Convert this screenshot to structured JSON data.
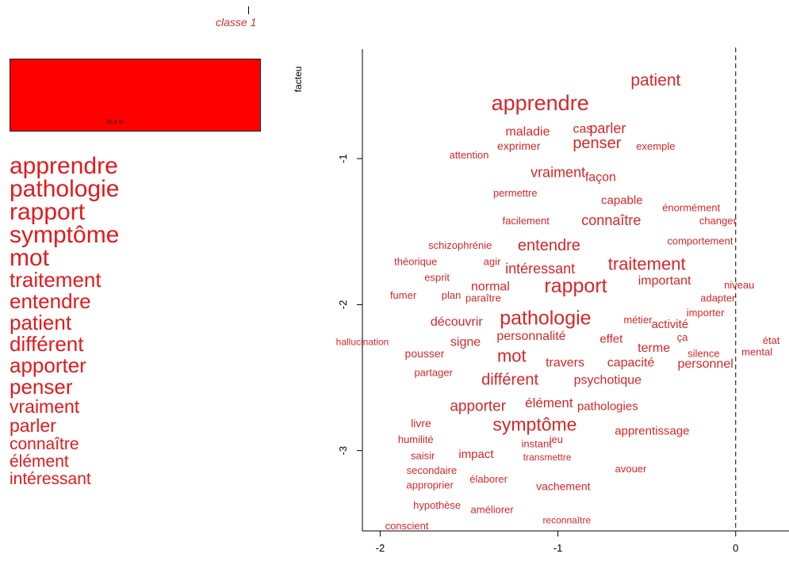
{
  "header": {
    "class_title": "classe  1"
  },
  "bar": {
    "percent_label": "35.5 %",
    "color": "#ff0000"
  },
  "word_list": [
    {
      "word": "apprendre",
      "size": 30
    },
    {
      "word": "pathologie",
      "size": 30
    },
    {
      "word": "rapport",
      "size": 30
    },
    {
      "word": "symptôme",
      "size": 30
    },
    {
      "word": "mot",
      "size": 30
    },
    {
      "word": "traitement",
      "size": 26
    },
    {
      "word": "entendre",
      "size": 26
    },
    {
      "word": "patient",
      "size": 26
    },
    {
      "word": "différent",
      "size": 26
    },
    {
      "word": "apporter",
      "size": 26
    },
    {
      "word": "penser",
      "size": 26
    },
    {
      "word": "vraiment",
      "size": 23
    },
    {
      "word": "parler",
      "size": 23
    },
    {
      "word": "connaître",
      "size": 21
    },
    {
      "word": "élément",
      "size": 21
    },
    {
      "word": "intéressant",
      "size": 21
    }
  ],
  "chart_data": {
    "type": "scatter",
    "ylabel": "facteu",
    "xlim": [
      -2.1,
      0.3
    ],
    "ylim": [
      -3.55,
      -0.25
    ],
    "xticks": [
      -2,
      -1,
      0
    ],
    "yticks": [
      -1,
      -2,
      -3
    ],
    "vline": {
      "x": 0,
      "style": "dashed"
    },
    "color": "#d62728",
    "points": [
      {
        "label": "patient",
        "x": -0.45,
        "y": -0.47,
        "size": 21
      },
      {
        "label": "apprendre",
        "x": -1.1,
        "y": -0.63,
        "size": 27
      },
      {
        "label": "cas",
        "x": -0.86,
        "y": -0.8,
        "size": 16
      },
      {
        "label": "parler",
        "x": -0.72,
        "y": -0.8,
        "size": 18
      },
      {
        "label": "maladie",
        "x": -1.17,
        "y": -0.82,
        "size": 16
      },
      {
        "label": "penser",
        "x": -0.78,
        "y": -0.9,
        "size": 20
      },
      {
        "label": "exprimer",
        "x": -1.22,
        "y": -0.92,
        "size": 14
      },
      {
        "label": "exemple",
        "x": -0.45,
        "y": -0.92,
        "size": 13
      },
      {
        "label": "attention",
        "x": -1.5,
        "y": -0.98,
        "size": 13
      },
      {
        "label": "vraiment",
        "x": -1.0,
        "y": -1.1,
        "size": 18
      },
      {
        "label": "façon",
        "x": -0.76,
        "y": -1.13,
        "size": 16
      },
      {
        "label": "permettre",
        "x": -1.24,
        "y": -1.24,
        "size": 13
      },
      {
        "label": "capable",
        "x": -0.64,
        "y": -1.29,
        "size": 15
      },
      {
        "label": "énormément",
        "x": -0.25,
        "y": -1.34,
        "size": 13
      },
      {
        "label": "facilement",
        "x": -1.18,
        "y": -1.43,
        "size": 13
      },
      {
        "label": "connaître",
        "x": -0.7,
        "y": -1.43,
        "size": 18
      },
      {
        "label": "changer",
        "x": -0.1,
        "y": -1.43,
        "size": 13
      },
      {
        "label": "comportement",
        "x": -0.2,
        "y": -1.57,
        "size": 13
      },
      {
        "label": "schizophrénie",
        "x": -1.55,
        "y": -1.6,
        "size": 13
      },
      {
        "label": "entendre",
        "x": -1.05,
        "y": -1.6,
        "size": 20
      },
      {
        "label": "théorique",
        "x": -1.8,
        "y": -1.71,
        "size": 13
      },
      {
        "label": "agir",
        "x": -1.37,
        "y": -1.71,
        "size": 13
      },
      {
        "label": "traitement",
        "x": -0.5,
        "y": -1.73,
        "size": 22
      },
      {
        "label": "intéressant",
        "x": -1.1,
        "y": -1.76,
        "size": 18
      },
      {
        "label": "esprit",
        "x": -1.68,
        "y": -1.82,
        "size": 13
      },
      {
        "label": "important",
        "x": -0.4,
        "y": -1.84,
        "size": 16
      },
      {
        "label": "niveau",
        "x": 0.02,
        "y": -1.87,
        "size": 13
      },
      {
        "label": "normal",
        "x": -1.38,
        "y": -1.88,
        "size": 16
      },
      {
        "label": "rapport",
        "x": -0.9,
        "y": -1.88,
        "size": 25
      },
      {
        "label": "fumer",
        "x": -1.87,
        "y": -1.94,
        "size": 13
      },
      {
        "label": "plan",
        "x": -1.6,
        "y": -1.94,
        "size": 13
      },
      {
        "label": "paraître",
        "x": -1.42,
        "y": -1.96,
        "size": 13
      },
      {
        "label": "adapter",
        "x": -0.1,
        "y": -1.96,
        "size": 13
      },
      {
        "label": "importer",
        "x": -0.17,
        "y": -2.06,
        "size": 13
      },
      {
        "label": "découvrir",
        "x": -1.57,
        "y": -2.12,
        "size": 16
      },
      {
        "label": "pathologie",
        "x": -1.07,
        "y": -2.1,
        "size": 25
      },
      {
        "label": "métier",
        "x": -0.55,
        "y": -2.11,
        "size": 13
      },
      {
        "label": "activité",
        "x": -0.37,
        "y": -2.14,
        "size": 15
      },
      {
        "label": "ça",
        "x": -0.3,
        "y": -2.23,
        "size": 13
      },
      {
        "label": "personnalité",
        "x": -1.15,
        "y": -2.22,
        "size": 16
      },
      {
        "label": "effet",
        "x": -0.7,
        "y": -2.24,
        "size": 15
      },
      {
        "label": "hallucination",
        "x": -2.1,
        "y": -2.26,
        "size": 12
      },
      {
        "label": "signe",
        "x": -1.52,
        "y": -2.26,
        "size": 16
      },
      {
        "label": "état",
        "x": 0.2,
        "y": -2.25,
        "size": 13
      },
      {
        "label": "terme",
        "x": -0.46,
        "y": -2.3,
        "size": 16
      },
      {
        "label": "silence",
        "x": -0.18,
        "y": -2.34,
        "size": 13
      },
      {
        "label": "mental",
        "x": 0.12,
        "y": -2.33,
        "size": 13
      },
      {
        "label": "pousser",
        "x": -1.75,
        "y": -2.34,
        "size": 14
      },
      {
        "label": "mot",
        "x": -1.26,
        "y": -2.36,
        "size": 22
      },
      {
        "label": "travers",
        "x": -0.96,
        "y": -2.4,
        "size": 16
      },
      {
        "label": "capacité",
        "x": -0.59,
        "y": -2.4,
        "size": 16
      },
      {
        "label": "personnel",
        "x": -0.17,
        "y": -2.41,
        "size": 16
      },
      {
        "label": "partager",
        "x": -1.7,
        "y": -2.47,
        "size": 13
      },
      {
        "label": "différent",
        "x": -1.27,
        "y": -2.52,
        "size": 20
      },
      {
        "label": "psychotique",
        "x": -0.72,
        "y": -2.52,
        "size": 16
      },
      {
        "label": "apporter",
        "x": -1.45,
        "y": -2.7,
        "size": 19
      },
      {
        "label": "élément",
        "x": -1.05,
        "y": -2.68,
        "size": 17
      },
      {
        "label": "pathologies",
        "x": -0.72,
        "y": -2.7,
        "size": 15
      },
      {
        "label": "livre",
        "x": -1.77,
        "y": -2.82,
        "size": 14
      },
      {
        "label": "symptôme",
        "x": -1.13,
        "y": -2.83,
        "size": 23
      },
      {
        "label": "apprentissage",
        "x": -0.47,
        "y": -2.87,
        "size": 15
      },
      {
        "label": "humilité",
        "x": -1.8,
        "y": -2.93,
        "size": 13
      },
      {
        "label": "instant",
        "x": -1.12,
        "y": -2.96,
        "size": 13
      },
      {
        "label": "jeu",
        "x": -1.01,
        "y": -2.93,
        "size": 13
      },
      {
        "label": "saisir",
        "x": -1.76,
        "y": -3.04,
        "size": 13
      },
      {
        "label": "impact",
        "x": -1.46,
        "y": -3.03,
        "size": 15
      },
      {
        "label": "transmettre",
        "x": -1.06,
        "y": -3.05,
        "size": 12
      },
      {
        "label": "secondaire",
        "x": -1.71,
        "y": -3.14,
        "size": 13
      },
      {
        "label": "avouer",
        "x": -0.59,
        "y": -3.13,
        "size": 13
      },
      {
        "label": "élaborer",
        "x": -1.39,
        "y": -3.2,
        "size": 13
      },
      {
        "label": "approprier",
        "x": -1.72,
        "y": -3.24,
        "size": 13
      },
      {
        "label": "vachement",
        "x": -0.97,
        "y": -3.25,
        "size": 14
      },
      {
        "label": "hypothèse",
        "x": -1.68,
        "y": -3.38,
        "size": 13
      },
      {
        "label": "améliorer",
        "x": -1.37,
        "y": -3.41,
        "size": 13
      },
      {
        "label": "reconnaître",
        "x": -0.95,
        "y": -3.48,
        "size": 12
      },
      {
        "label": "conscient",
        "x": -1.85,
        "y": -3.52,
        "size": 13
      }
    ]
  }
}
